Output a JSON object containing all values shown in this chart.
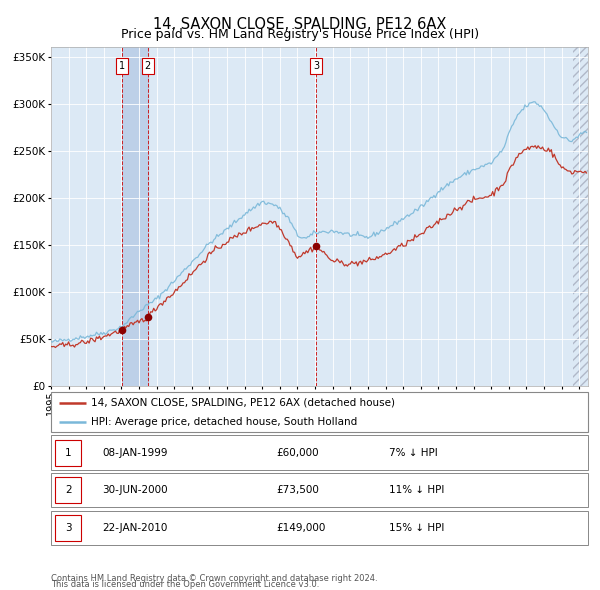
{
  "title": "14, SAXON CLOSE, SPALDING, PE12 6AX",
  "subtitle": "Price paid vs. HM Land Registry's House Price Index (HPI)",
  "legend_line1": "14, SAXON CLOSE, SPALDING, PE12 6AX (detached house)",
  "legend_line2": "HPI: Average price, detached house, South Holland",
  "footer1": "Contains HM Land Registry data © Crown copyright and database right 2024.",
  "footer2": "This data is licensed under the Open Government Licence v3.0.",
  "transactions": [
    {
      "num": 1,
      "date": "08-JAN-1999",
      "price": 60000,
      "note": "7% ↓ HPI"
    },
    {
      "num": 2,
      "date": "30-JUN-2000",
      "price": 73500,
      "note": "11% ↓ HPI"
    },
    {
      "num": 3,
      "date": "22-JAN-2010",
      "price": 149000,
      "note": "15% ↓ HPI"
    }
  ],
  "transaction_dates_dec": [
    1999.03,
    2000.5,
    2010.06
  ],
  "sale_prices": [
    60000,
    73500,
    149000
  ],
  "hpi_line_color": "#7ab8d9",
  "price_line_color": "#c0392b",
  "dot_color": "#8b0000",
  "vline_color": "#cc0000",
  "bg_chart_color": "#dce9f5",
  "bg_shaded_color": "#bdd0e8",
  "ylim": [
    0,
    360000
  ],
  "yticks": [
    0,
    50000,
    100000,
    150000,
    200000,
    250000,
    300000,
    350000
  ],
  "xlim_start": 1995.0,
  "xlim_end": 2025.5,
  "title_fontsize": 10.5,
  "subtitle_fontsize": 9,
  "axis_fontsize": 7.5,
  "legend_fontsize": 7.5,
  "table_fontsize": 7.5,
  "footer_fontsize": 6
}
